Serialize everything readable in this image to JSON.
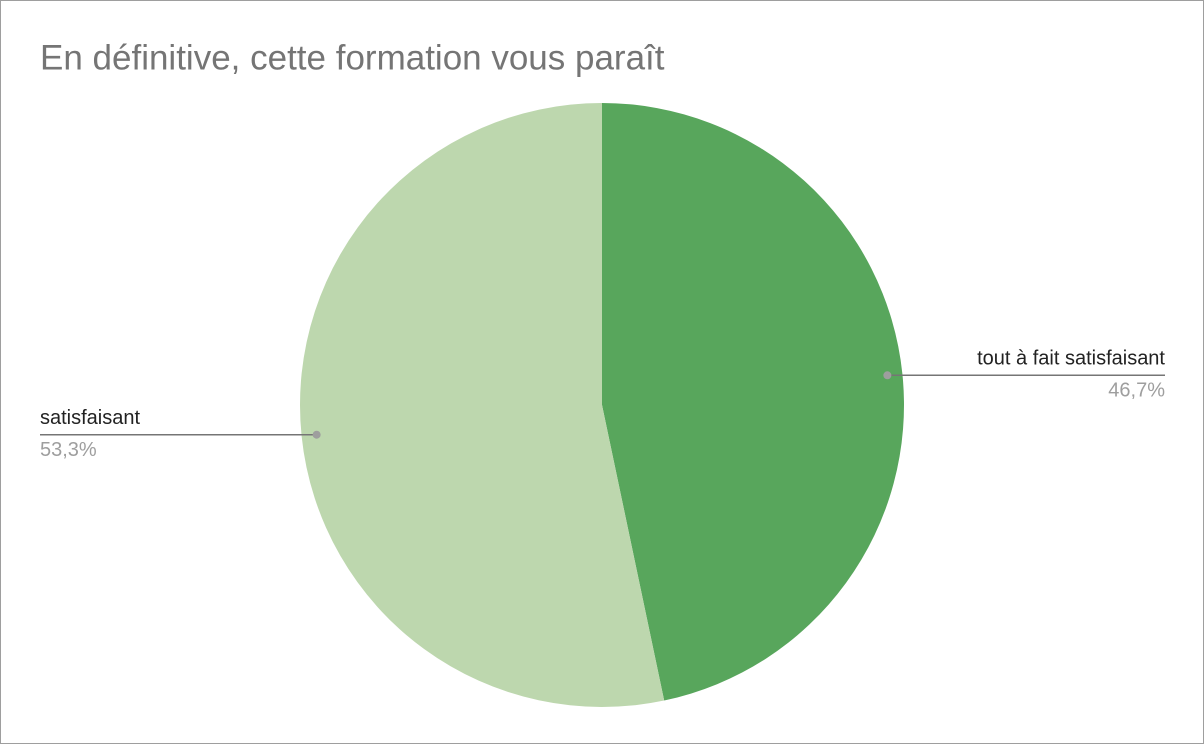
{
  "chart_data": {
    "type": "pie",
    "title": "En définitive, cette formation vous paraît",
    "categories": [
      "tout à fait satisfaisant",
      "satisfaisant"
    ],
    "values": [
      46.7,
      53.3
    ],
    "value_labels": [
      "46,7%",
      "53,3%"
    ],
    "colors": [
      "#58a65c",
      "#bdd7ae"
    ]
  }
}
